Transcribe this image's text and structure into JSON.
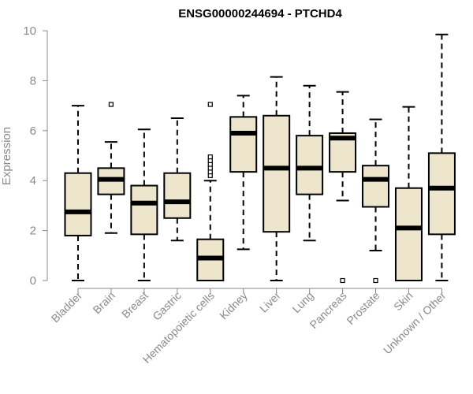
{
  "chart_data": {
    "type": "boxplot",
    "title": "ENSG00000244694 - PTCHD4",
    "xlabel": "",
    "ylabel": "Expression",
    "ylim": [
      0,
      10
    ],
    "yticks": [
      0,
      2,
      4,
      6,
      8,
      10
    ],
    "colors": {
      "box_fill": "#ede6cd",
      "stroke": "#000000",
      "axis": "#8a8a8a"
    },
    "categories": [
      "Bladder",
      "Brain",
      "Breast",
      "Gastric",
      "Hematopoietic cells",
      "Kidney",
      "Liver",
      "Lung",
      "Pancreas",
      "Prostate",
      "Skin",
      "Unknown / Other"
    ],
    "boxes": [
      {
        "name": "Bladder",
        "min": 0,
        "q1": 1.8,
        "median": 2.75,
        "q3": 4.3,
        "max": 7.0,
        "outliers": []
      },
      {
        "name": "Brain",
        "min": 1.9,
        "q1": 3.45,
        "median": 4.05,
        "q3": 4.5,
        "max": 5.55,
        "outliers": [
          7.05
        ]
      },
      {
        "name": "Breast",
        "min": 0,
        "q1": 1.85,
        "median": 3.1,
        "q3": 3.8,
        "max": 6.05,
        "outliers": []
      },
      {
        "name": "Gastric",
        "min": 1.6,
        "q1": 2.5,
        "median": 3.15,
        "q3": 4.3,
        "max": 6.5,
        "outliers": []
      },
      {
        "name": "Hematopoietic cells",
        "min": 0,
        "q1": 0,
        "median": 0.9,
        "q3": 1.65,
        "max": 4.0,
        "outliers": [
          4.2,
          4.35,
          4.5,
          4.65,
          4.8,
          4.95,
          7.05
        ]
      },
      {
        "name": "Kidney",
        "min": 1.25,
        "q1": 4.35,
        "median": 5.9,
        "q3": 6.55,
        "max": 7.4,
        "outliers": []
      },
      {
        "name": "Liver",
        "min": 0,
        "q1": 1.95,
        "median": 4.5,
        "q3": 6.6,
        "max": 8.15,
        "outliers": []
      },
      {
        "name": "Lung",
        "min": 1.6,
        "q1": 3.45,
        "median": 4.5,
        "q3": 5.8,
        "max": 7.8,
        "outliers": []
      },
      {
        "name": "Pancreas",
        "min": 3.2,
        "q1": 4.35,
        "median": 5.7,
        "q3": 5.9,
        "max": 7.55,
        "outliers": [
          0
        ]
      },
      {
        "name": "Prostate",
        "min": 1.2,
        "q1": 2.95,
        "median": 4.05,
        "q3": 4.6,
        "max": 6.45,
        "outliers": [
          0
        ]
      },
      {
        "name": "Skin",
        "min": 0,
        "q1": 0,
        "median": 2.1,
        "q3": 3.7,
        "max": 6.95,
        "outliers": []
      },
      {
        "name": "Unknown / Other",
        "min": 0,
        "q1": 1.85,
        "median": 3.7,
        "q3": 5.1,
        "max": 9.85,
        "outliers": []
      }
    ]
  }
}
